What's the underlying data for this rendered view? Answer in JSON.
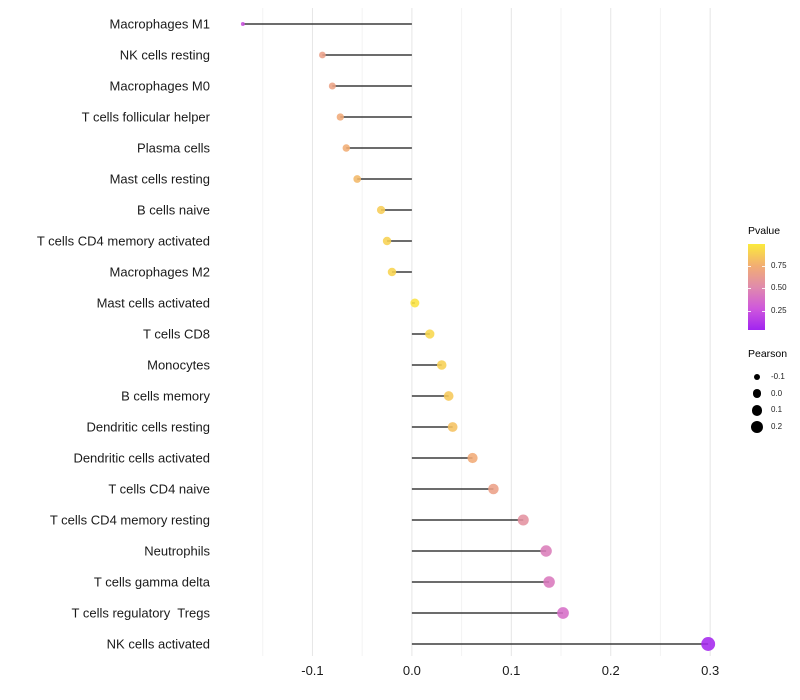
{
  "chart_data": {
    "type": "scatter",
    "variant": "lollipop-horizontal",
    "title": "",
    "xlabel": "",
    "ylabel": "",
    "grid": "vertical-major-and-minor",
    "legend_position": "right",
    "points": [
      {
        "label": "Macrophages M1",
        "pearson": -0.17,
        "pvalue": 0.22
      },
      {
        "label": "NK cells resting",
        "pearson": -0.09,
        "pvalue": 0.65
      },
      {
        "label": "Macrophages M0",
        "pearson": -0.08,
        "pvalue": 0.67
      },
      {
        "label": "T cells follicular helper",
        "pearson": -0.072,
        "pvalue": 0.72
      },
      {
        "label": "Plasma cells",
        "pearson": -0.066,
        "pvalue": 0.74
      },
      {
        "label": "Mast cells resting",
        "pearson": -0.055,
        "pvalue": 0.79
      },
      {
        "label": "B cells naive",
        "pearson": -0.031,
        "pvalue": 0.88
      },
      {
        "label": "T cells CD4 memory activated",
        "pearson": -0.025,
        "pvalue": 0.9
      },
      {
        "label": "Macrophages M2",
        "pearson": -0.02,
        "pvalue": 0.91
      },
      {
        "label": "Mast cells activated",
        "pearson": 0.003,
        "pvalue": 0.97
      },
      {
        "label": "T cells CD8",
        "pearson": 0.018,
        "pvalue": 0.92
      },
      {
        "label": "Monocytes",
        "pearson": 0.03,
        "pvalue": 0.89
      },
      {
        "label": "B cells memory",
        "pearson": 0.037,
        "pvalue": 0.86
      },
      {
        "label": "Dendritic cells resting",
        "pearson": 0.041,
        "pvalue": 0.83
      },
      {
        "label": "Dendritic cells activated",
        "pearson": 0.061,
        "pvalue": 0.73
      },
      {
        "label": "T cells CD4 naive",
        "pearson": 0.082,
        "pvalue": 0.66
      },
      {
        "label": "T cells CD4 memory resting",
        "pearson": 0.112,
        "pvalue": 0.55
      },
      {
        "label": "Neutrophils",
        "pearson": 0.135,
        "pvalue": 0.43
      },
      {
        "label": "T cells gamma delta",
        "pearson": 0.138,
        "pvalue": 0.41
      },
      {
        "label": "T cells regulatory  Tregs",
        "pearson": 0.152,
        "pvalue": 0.36
      },
      {
        "label": "NK cells activated",
        "pearson": 0.298,
        "pvalue": 0.02
      }
    ],
    "xlim": [
      -0.195,
      0.33
    ],
    "x_ticks": {
      "values": [
        -0.1,
        0.0,
        0.1,
        0.2,
        0.3
      ],
      "labels": [
        "-0.1",
        "0.0",
        "0.1",
        "0.2",
        "0.3"
      ]
    },
    "x_minor_ticks": [
      -0.15,
      -0.05,
      0.05,
      0.15,
      0.25
    ],
    "colors": {
      "stem": "#3b3b3b",
      "grid_major": "#e6e6e6",
      "grid_minor": "#f3f3f3",
      "axis_text": "#1a1a1a",
      "gradient_stops": [
        {
          "at": 0.0,
          "hex": "#a124f0"
        },
        {
          "at": 0.25,
          "hex": "#cf58dc"
        },
        {
          "at": 0.5,
          "hex": "#e08bac"
        },
        {
          "at": 0.75,
          "hex": "#f2ae72"
        },
        {
          "at": 1.0,
          "hex": "#fbea3c"
        }
      ]
    }
  },
  "legend": {
    "pvalue": {
      "title": "Pvalue",
      "tick_labels": [
        "0.75",
        "0.50",
        "0.25"
      ],
      "tick_values": [
        0.75,
        0.5,
        0.25
      ],
      "bar_range": [
        0.03,
        1.0
      ]
    },
    "pearson": {
      "title": "Pearson",
      "entries": [
        {
          "label": "-0.1",
          "value": -0.1
        },
        {
          "label": "0.0",
          "value": 0.0
        },
        {
          "label": "0.1",
          "value": 0.1
        },
        {
          "label": "0.2",
          "value": 0.2
        }
      ]
    }
  }
}
